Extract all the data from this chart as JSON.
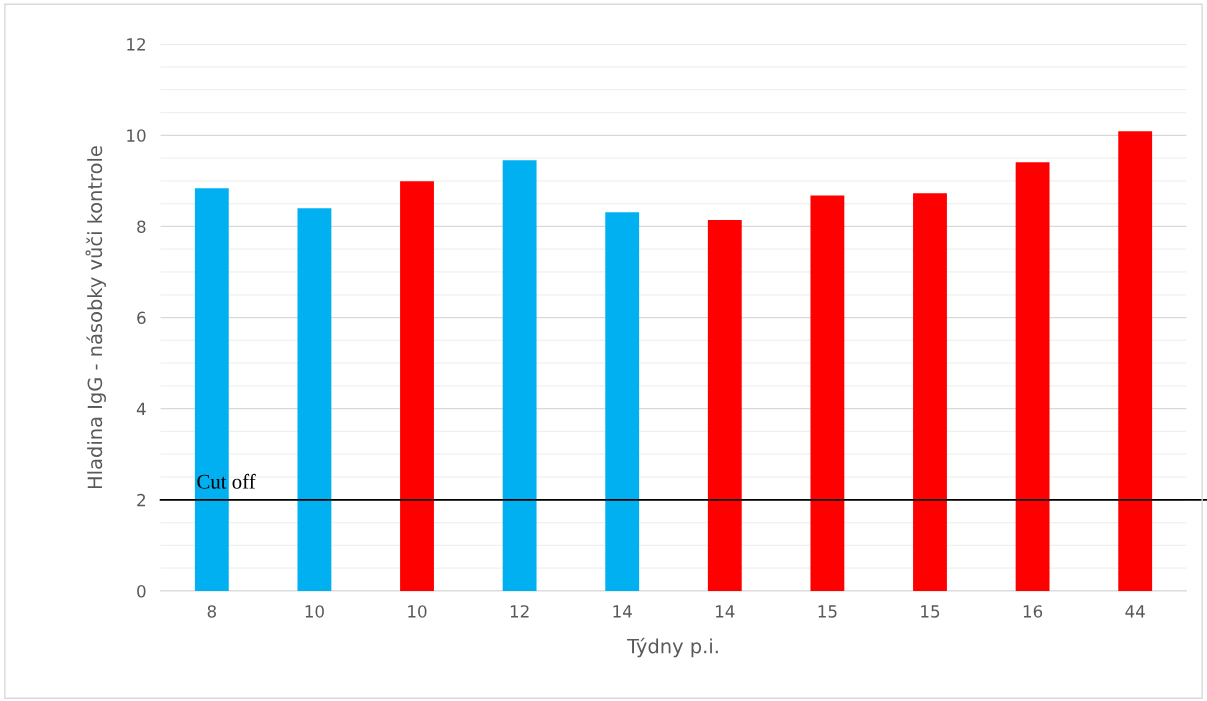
{
  "chart_data": {
    "type": "bar",
    "xlabel": "Týdny p.i.",
    "ylabel": "Hladina IgG - násobky vůči kontrole",
    "categories": [
      "8",
      "10",
      "10",
      "12",
      "14",
      "14",
      "15",
      "15",
      "16",
      "44"
    ],
    "values": [
      8.84,
      8.4,
      8.99,
      9.45,
      8.31,
      8.14,
      8.68,
      8.73,
      9.41,
      10.09
    ],
    "colors": [
      "#00b0f0",
      "#00b0f0",
      "#ff0000",
      "#00b0f0",
      "#00b0f0",
      "#ff0000",
      "#ff0000",
      "#ff0000",
      "#ff0000",
      "#ff0000"
    ],
    "ylim": [
      0,
      12
    ],
    "yticks": [
      0,
      {
        "value": 0.5,
        "label": null
      },
      {
        "value": 1,
        "label": null
      },
      {
        "value": 1.5,
        "label": null
      },
      2,
      {
        "value": 2.5,
        "label": null
      },
      {
        "value": 3,
        "label": null
      },
      {
        "value": 3.5,
        "label": null
      },
      4,
      {
        "value": 4.5,
        "label": null
      },
      {
        "value": 5,
        "label": null
      },
      {
        "value": 5.5,
        "label": null
      },
      6,
      {
        "value": 6.5,
        "label": null
      },
      {
        "value": 7,
        "label": null
      },
      {
        "value": 7.5,
        "label": null
      },
      8,
      {
        "value": 8.5,
        "label": null
      },
      {
        "value": 9,
        "label": null
      },
      {
        "value": 9.5,
        "label": null
      },
      10,
      {
        "value": 10.5,
        "label": null
      },
      {
        "value": 11,
        "label": null
      },
      {
        "value": 11.5,
        "label": null
      },
      12
    ],
    "grid": true,
    "ref_lines": [
      {
        "axis": "y",
        "value": 2,
        "label": "Cut off",
        "color": "#000000"
      }
    ]
  }
}
